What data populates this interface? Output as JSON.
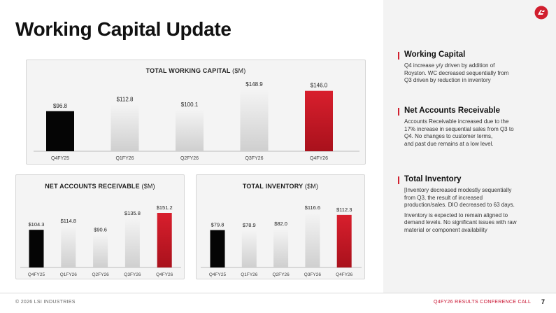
{
  "page": {
    "title": "Working Capital Update"
  },
  "footer": {
    "copyright": "© 2026 LSI INDUSTRIES",
    "event": "Q4FY26 RESULTS CONFERENCE CALL",
    "page_number": "7"
  },
  "colors": {
    "black_bar": "#050505",
    "gray_bar": "#d9d9d9",
    "red_bar": "#d11f2e",
    "accent": "#c8102e"
  },
  "logo": {
    "icon": "lsi-logo-icon"
  },
  "sections": [
    {
      "title": "Working Capital",
      "text": "Q4 increase y/y driven by addition of\nRoyston. WC decreased sequentially from\nQ3 driven by reduction in inventory"
    },
    {
      "title": "Net Accounts Receivable",
      "text": "Accounts Receivable increased due to the\n17% increase in sequential sales from Q3 to\nQ4. No changes to customer terms,\nand past due remains at a low level."
    },
    {
      "title": "Total Inventory",
      "text": "[Inventory decreased modestly sequentially\nfrom Q3, the result of increased\nproduction/sales. DIO decreased to 63 days.",
      "text2": "Inventory is expected to remain aligned to\ndemand levels. No significant issues with raw\nmaterial or component availability"
    }
  ],
  "chart_data": [
    {
      "type": "bar",
      "title": "TOTAL WORKING CAPITAL",
      "unit": "($M)",
      "categories": [
        "Q4FY25",
        "Q1FY26",
        "Q2FY26",
        "Q3FY26",
        "Q4FY26"
      ],
      "values": [
        96.8,
        112.8,
        100.1,
        148.9,
        146.0
      ],
      "labels": [
        "$96.8",
        "$112.8",
        "$100.1",
        "$148.9",
        "$146.0"
      ],
      "bar_colors": [
        "black",
        "gray",
        "gray",
        "gray",
        "red"
      ]
    },
    {
      "type": "bar",
      "title": "NET ACCOUNTS RECEIVABLE",
      "unit": "($M)",
      "categories": [
        "Q4FY25",
        "Q1FY26",
        "Q2FY26",
        "Q3FY26",
        "Q4FY26"
      ],
      "values": [
        104.3,
        114.8,
        90.6,
        135.8,
        151.2
      ],
      "labels": [
        "$104.3",
        "$114.8",
        "$90.6",
        "$135.8",
        "$151.2"
      ],
      "bar_colors": [
        "black",
        "gray",
        "gray",
        "gray",
        "red"
      ]
    },
    {
      "type": "bar",
      "title": "TOTAL INVENTORY",
      "unit": "($M)",
      "categories": [
        "Q4FY25",
        "Q1FY26",
        "Q2FY26",
        "Q3FY26",
        "Q4FY26"
      ],
      "values": [
        79.8,
        78.9,
        82.0,
        116.6,
        112.3
      ],
      "labels": [
        "$79.8",
        "$78.9",
        "$82.0",
        "$116.6",
        "$112.3"
      ],
      "bar_colors": [
        "black",
        "gray",
        "gray",
        "gray",
        "red"
      ]
    }
  ]
}
